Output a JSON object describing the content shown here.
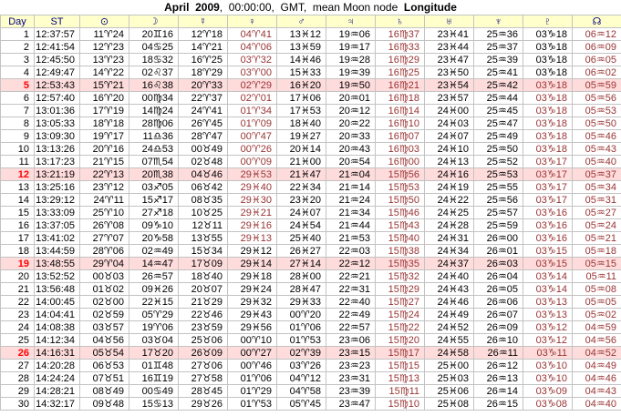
{
  "title": {
    "bold_prefix": "April  2009",
    "middle": ",  00:00:00,  GMT,  mean Moon node  ",
    "bold_suffix": "Longitude"
  },
  "colors": {
    "header_bg": "#FFFFCC",
    "header_text": "#000080",
    "value_text": "#000000",
    "retrograde_text": "#993333",
    "sunday_text": "#FF0000",
    "sunday_row_bg": "#FFDCDC",
    "grid_line": "#C3C3C3",
    "node_header_text": "#993333"
  },
  "table": {
    "columns": [
      {
        "key": "day",
        "label": "Day",
        "icon": "day-label"
      },
      {
        "key": "st",
        "label": "ST",
        "icon": "sidereal-time-label"
      },
      {
        "key": "sun",
        "label": "⊙",
        "icon": "sun-icon"
      },
      {
        "key": "moon",
        "label": "☽",
        "icon": "moon-icon"
      },
      {
        "key": "mercury",
        "label": "☿",
        "icon": "mercury-icon"
      },
      {
        "key": "venus",
        "label": "♀",
        "icon": "venus-icon"
      },
      {
        "key": "mars",
        "label": "♂",
        "icon": "mars-icon"
      },
      {
        "key": "jupiter",
        "label": "♃",
        "icon": "jupiter-icon"
      },
      {
        "key": "saturn",
        "label": "♄",
        "icon": "saturn-icon"
      },
      {
        "key": "uranus",
        "label": "♅",
        "icon": "uranus-icon"
      },
      {
        "key": "neptune",
        "label": "♆",
        "icon": "neptune-icon"
      },
      {
        "key": "pluto",
        "label": "♇",
        "icon": "pluto-icon"
      },
      {
        "key": "node",
        "label": "☊",
        "icon": "ascending-node-icon"
      }
    ],
    "sundays": [
      5,
      12,
      19,
      26
    ],
    "retrograde_red_day_ranges": {
      "venus": [
        1,
        17
      ],
      "saturn": [
        1,
        30
      ],
      "pluto": [
        5,
        30
      ],
      "node": [
        1,
        30
      ]
    },
    "rows": [
      [
        "1",
        "12:37:57",
        "11♈24",
        "20♊16",
        "12♈18",
        "04♈41",
        "13♓12",
        "19♒06",
        "16♍37",
        "23♓41",
        "25♒36",
        "03♑18",
        "06♒12"
      ],
      [
        "2",
        "12:41:54",
        "12♈23",
        "04♋25",
        "14♈21",
        "04♈06",
        "13♓59",
        "19♒17",
        "16♍33",
        "23♓44",
        "25♒37",
        "03♑18",
        "06♒09"
      ],
      [
        "3",
        "12:45:50",
        "13♈23",
        "18♋32",
        "16♈25",
        "03♈32",
        "14♓46",
        "19♒28",
        "16♍29",
        "23♓47",
        "25♒39",
        "03♑18",
        "06♒05"
      ],
      [
        "4",
        "12:49:47",
        "14♈22",
        "02♌37",
        "18♈29",
        "03♈00",
        "15♓33",
        "19♒39",
        "16♍25",
        "23♓50",
        "25♒41",
        "03♑18",
        "06♒02"
      ],
      [
        "5",
        "12:53:43",
        "15♈21",
        "16♌38",
        "20♈33",
        "02♈29",
        "16♓20",
        "19♒50",
        "16♍21",
        "23♓54",
        "25♒42",
        "03♑18",
        "05♒59"
      ],
      [
        "6",
        "12:57:40",
        "16♈20",
        "00♍34",
        "22♈37",
        "02♈01",
        "17♓06",
        "20♒01",
        "16♍18",
        "23♓57",
        "25♒44",
        "03♑18",
        "05♒56"
      ],
      [
        "7",
        "13:01:36",
        "17♈19",
        "14♍24",
        "24♈41",
        "01♈34",
        "17♓53",
        "20♒12",
        "16♍14",
        "24♓00",
        "25♒45",
        "03♑18",
        "05♒53"
      ],
      [
        "8",
        "13:05:33",
        "18♈18",
        "28♍06",
        "26♈45",
        "01♈09",
        "18♓40",
        "20♒22",
        "16♍10",
        "24♓03",
        "25♒47",
        "03♑18",
        "05♒50"
      ],
      [
        "9",
        "13:09:30",
        "19♈17",
        "11♎36",
        "28♈47",
        "00♈47",
        "19♓27",
        "20♒33",
        "16♍07",
        "24♓07",
        "25♒49",
        "03♑18",
        "05♒46"
      ],
      [
        "10",
        "13:13:26",
        "20♈16",
        "24♎53",
        "00♉49",
        "00♈26",
        "20♓14",
        "20♒43",
        "16♍03",
        "24♓10",
        "25♒50",
        "03♑18",
        "05♒43"
      ],
      [
        "11",
        "13:17:23",
        "21♈15",
        "07♏54",
        "02♉48",
        "00♈09",
        "21♓00",
        "20♒54",
        "16♍00",
        "24♓13",
        "25♒52",
        "03♑17",
        "05♒40"
      ],
      [
        "12",
        "13:21:19",
        "22♈13",
        "20♏38",
        "04♉46",
        "29♓53",
        "21♓47",
        "21♒04",
        "15♍56",
        "24♓16",
        "25♒53",
        "03♑17",
        "05♒37"
      ],
      [
        "13",
        "13:25:16",
        "23♈12",
        "03♐05",
        "06♉42",
        "29♓40",
        "22♓34",
        "21♒14",
        "15♍53",
        "24♓19",
        "25♒55",
        "03♑17",
        "05♒34"
      ],
      [
        "14",
        "13:29:12",
        "24♈11",
        "15♐17",
        "08♉35",
        "29♓30",
        "23♓20",
        "21♒24",
        "15♍50",
        "24♓22",
        "25♒56",
        "03♑17",
        "05♒31"
      ],
      [
        "15",
        "13:33:09",
        "25♈10",
        "27♐18",
        "10♉25",
        "29♓21",
        "24♓07",
        "21♒34",
        "15♍46",
        "24♓25",
        "25♒57",
        "03♑16",
        "05♒27"
      ],
      [
        "16",
        "13:37:05",
        "26♈08",
        "09♑10",
        "12♉11",
        "29♓16",
        "24♓54",
        "21♒44",
        "15♍43",
        "24♓28",
        "25♒59",
        "03♑16",
        "05♒24"
      ],
      [
        "17",
        "13:41:02",
        "27♈07",
        "20♑58",
        "13♉55",
        "29♓13",
        "25♓40",
        "21♒53",
        "15♍40",
        "24♓31",
        "26♒00",
        "03♑16",
        "05♒21"
      ],
      [
        "18",
        "13:44:59",
        "28♈06",
        "02♒49",
        "15♉34",
        "29♓12",
        "26♓27",
        "22♒03",
        "15♍38",
        "24♓34",
        "26♒01",
        "03♑15",
        "05♒18"
      ],
      [
        "19",
        "13:48:55",
        "29♈04",
        "14♒47",
        "17♉09",
        "29♓14",
        "27♓14",
        "22♒12",
        "15♍35",
        "24♓37",
        "26♒03",
        "03♑15",
        "05♒15"
      ],
      [
        "20",
        "13:52:52",
        "00♉03",
        "26♒57",
        "18♉40",
        "29♓18",
        "28♓00",
        "22♒21",
        "15♍32",
        "24♓40",
        "26♒04",
        "03♑14",
        "05♒11"
      ],
      [
        "21",
        "13:56:48",
        "01♉02",
        "09♓26",
        "20♉07",
        "29♓24",
        "28♓47",
        "22♒31",
        "15♍29",
        "24♓43",
        "26♒05",
        "03♑14",
        "05♒08"
      ],
      [
        "22",
        "14:00:45",
        "02♉00",
        "22♓15",
        "21♉29",
        "29♓32",
        "29♓33",
        "22♒40",
        "15♍27",
        "24♓46",
        "26♒06",
        "03♑13",
        "05♒05"
      ],
      [
        "23",
        "14:04:41",
        "02♉59",
        "05♈29",
        "22♉46",
        "29♓43",
        "00♈20",
        "22♒49",
        "15♍24",
        "24♓49",
        "26♒07",
        "03♑13",
        "05♒02"
      ],
      [
        "24",
        "14:08:38",
        "03♉57",
        "19♈06",
        "23♉59",
        "29♓56",
        "01♈06",
        "22♒57",
        "15♍22",
        "24♓52",
        "26♒09",
        "03♑12",
        "04♒59"
      ],
      [
        "25",
        "14:12:34",
        "04♉56",
        "03♉04",
        "25♉06",
        "00♈10",
        "01♈53",
        "23♒06",
        "15♍20",
        "24♓55",
        "26♒10",
        "03♑12",
        "04♒56"
      ],
      [
        "26",
        "14:16:31",
        "05♉54",
        "17♉20",
        "26♉09",
        "00♈27",
        "02♈39",
        "23♒15",
        "15♍17",
        "24♓58",
        "26♒11",
        "03♑11",
        "04♒52"
      ],
      [
        "27",
        "14:20:28",
        "06♉53",
        "01♊48",
        "27♉06",
        "00♈46",
        "03♈26",
        "23♒23",
        "15♍15",
        "25♓00",
        "26♒12",
        "03♑10",
        "04♒49"
      ],
      [
        "28",
        "14:24:24",
        "07♉51",
        "16♊19",
        "27♉58",
        "01♈06",
        "04♈12",
        "23♒31",
        "15♍13",
        "25♓03",
        "26♒13",
        "03♑10",
        "04♒46"
      ],
      [
        "29",
        "14:28:21",
        "08♉49",
        "00♋49",
        "28♉45",
        "01♈29",
        "04♈58",
        "23♒39",
        "15♍11",
        "25♓06",
        "26♒14",
        "03♑09",
        "04♒43"
      ],
      [
        "30",
        "14:32:17",
        "09♉48",
        "15♋13",
        "29♉26",
        "01♈53",
        "05♈45",
        "23♒47",
        "15♍10",
        "25♓08",
        "26♒15",
        "03♑08",
        "04♒40"
      ]
    ]
  }
}
